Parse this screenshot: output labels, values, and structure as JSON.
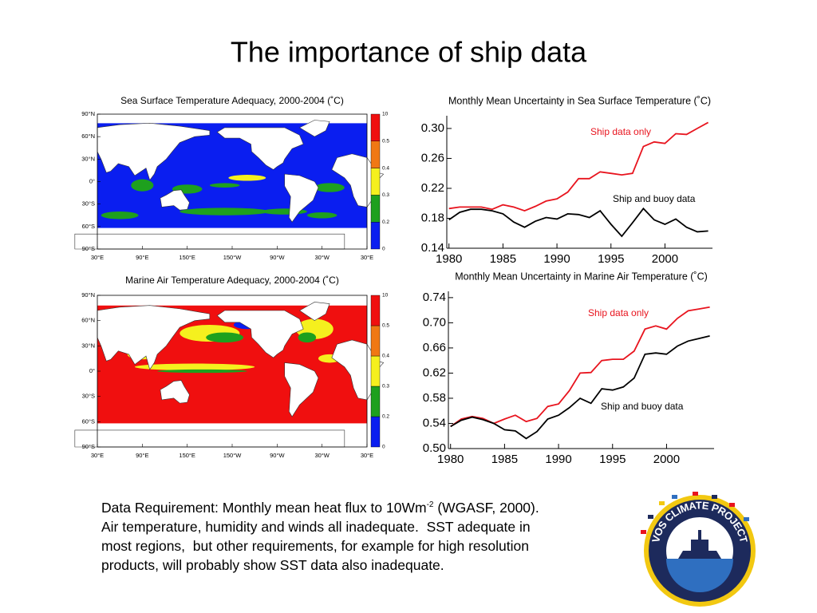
{
  "title": "The importance of ship data",
  "maps": [
    {
      "title": "Sea Surface Temperature Adequacy, 2000-2004 (˚C)",
      "lat_labels": [
        "90°N",
        "60°N",
        "30°N",
        "0°",
        "30°S",
        "60°S",
        "90°S"
      ],
      "lon_labels": [
        "30°E",
        "90°E",
        "150°E",
        "150°W",
        "90°W",
        "30°W",
        "30°E"
      ],
      "colorbar": {
        "ticks": [
          0,
          0.2,
          0.3,
          0.4,
          0.5,
          10
        ],
        "colors": [
          "#0a1ef0",
          "#1ea01e",
          "#f5f01e",
          "#f07814",
          "#f00f0f"
        ]
      }
    },
    {
      "title": "Marine Air Temperature Adequacy, 2000-2004 (˚C)",
      "lat_labels": [
        "90°N",
        "60°N",
        "30°N",
        "0°",
        "30°S",
        "60°S",
        "90°S"
      ],
      "lon_labels": [
        "30°E",
        "90°E",
        "150°E",
        "150°W",
        "90°W",
        "30°W",
        "30°E"
      ],
      "colorbar": {
        "ticks": [
          0,
          0.2,
          0.3,
          0.4,
          0.5,
          10
        ],
        "colors": [
          "#0a1ef0",
          "#1ea01e",
          "#f5f01e",
          "#f07814",
          "#f00f0f"
        ]
      }
    }
  ],
  "chart_data": [
    {
      "type": "line",
      "title": "Monthly Mean Uncertainty in Sea Surface Temperature (˚C)",
      "x": [
        1980,
        1981,
        1982,
        1983,
        1984,
        1985,
        1986,
        1987,
        1988,
        1989,
        1990,
        1991,
        1992,
        1993,
        1994,
        1995,
        1996,
        1997,
        1998,
        1999,
        2000,
        2001,
        2002,
        2003,
        2004
      ],
      "xlim": [
        1979.8,
        2004.4
      ],
      "xticks": [
        1980,
        1985,
        1990,
        1995,
        2000
      ],
      "ylim": [
        0.14,
        0.317
      ],
      "yticks": [
        0.14,
        0.18,
        0.22,
        0.26,
        {
          "value": 0.3,
          "label": "0.30"
        }
      ],
      "series": [
        {
          "name": "Ship data only",
          "color": "#e8141e",
          "values": [
            0.193,
            0.195,
            0.195,
            0.195,
            0.192,
            0.198,
            0.195,
            0.19,
            0.196,
            0.203,
            0.206,
            0.215,
            0.233,
            0.233,
            0.242,
            0.24,
            0.238,
            0.24,
            0.276,
            0.282,
            0.28,
            0.293,
            0.292,
            0.3,
            0.308
          ]
        },
        {
          "name": "Ship and buoy data",
          "color": "#000000",
          "values": [
            0.178,
            0.188,
            0.192,
            0.192,
            0.19,
            0.186,
            0.175,
            0.168,
            0.176,
            0.181,
            0.179,
            0.186,
            0.185,
            0.181,
            0.19,
            0.172,
            0.156,
            0.174,
            0.193,
            0.178,
            0.172,
            0.179,
            0.168,
            0.162,
            0.163
          ]
        }
      ]
    },
    {
      "type": "line",
      "title": "Monthly Mean Uncertainty in Marine Air Temperature (˚C)",
      "x": [
        1980,
        1981,
        1982,
        1983,
        1984,
        1985,
        1986,
        1987,
        1988,
        1989,
        1990,
        1991,
        1992,
        1993,
        1994,
        1995,
        1996,
        1997,
        1998,
        1999,
        2000,
        2001,
        2002,
        2003,
        2004
      ],
      "xlim": [
        1979.8,
        2004.4
      ],
      "xticks": [
        1980,
        1985,
        1990,
        1995,
        2000
      ],
      "ylim": [
        0.5,
        0.75
      ],
      "yticks": [
        {
          "value": 0.5,
          "label": "0.50"
        },
        0.54,
        0.58,
        0.62,
        0.66,
        {
          "value": 0.7,
          "label": "0.70"
        },
        0.74
      ],
      "series": [
        {
          "name": "Ship data only",
          "color": "#e8141e",
          "values": [
            0.535,
            0.547,
            0.551,
            0.548,
            0.54,
            0.547,
            0.553,
            0.543,
            0.548,
            0.567,
            0.571,
            0.592,
            0.62,
            0.621,
            0.64,
            0.642,
            0.642,
            0.655,
            0.69,
            0.695,
            0.69,
            0.707,
            0.719,
            0.722,
            0.725
          ]
        },
        {
          "name": "Ship and buoy data",
          "color": "#000000",
          "values": [
            0.535,
            0.545,
            0.55,
            0.546,
            0.54,
            0.53,
            0.528,
            0.516,
            0.527,
            0.547,
            0.553,
            0.565,
            0.58,
            0.572,
            0.595,
            0.593,
            0.598,
            0.612,
            0.65,
            0.652,
            0.65,
            0.663,
            0.671,
            0.675,
            0.679
          ]
        }
      ]
    }
  ],
  "text": {
    "line1_before": "Data Requirement: Monthly mean heat flux to 10Wm",
    "superscript": "-2",
    "line1_after": " (WGASF, 2000).",
    "lines": [
      "Air temperature, humidity and winds all inadequate.  SST adequate in",
      "most regions,  but other requirements, for example for high resolution",
      "products, will probably show SST data also inadequate."
    ]
  },
  "logo": {
    "text": "VOS CLIMATE PROJECT"
  }
}
